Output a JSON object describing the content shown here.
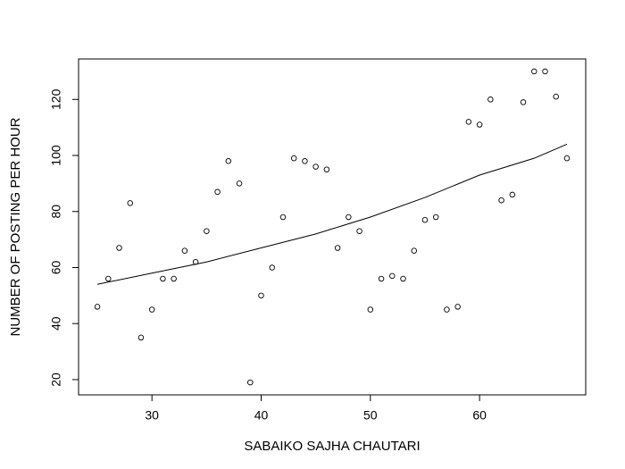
{
  "chart_data": {
    "type": "scatter",
    "xlabel": "SABAIKO SAJHA CHAUTARI",
    "ylabel": "NUMBER OF POSTING PER HOUR",
    "x": [
      25,
      26,
      27,
      28,
      29,
      30,
      31,
      32,
      33,
      34,
      35,
      36,
      37,
      38,
      39,
      40,
      41,
      42,
      43,
      44,
      45,
      46,
      47,
      48,
      49,
      50,
      51,
      52,
      53,
      54,
      55,
      56,
      57,
      58,
      59,
      60,
      61,
      62,
      63,
      64,
      65,
      66,
      67,
      68
    ],
    "values": [
      46,
      56,
      67,
      83,
      35,
      45,
      56,
      56,
      66,
      62,
      73,
      87,
      98,
      90,
      19,
      50,
      60,
      78,
      99,
      98,
      96,
      95,
      67,
      78,
      73,
      45,
      56,
      57,
      56,
      66,
      77,
      78,
      45,
      46,
      112,
      111,
      120,
      84,
      86,
      119,
      130,
      130,
      121,
      99
    ],
    "trend": {
      "x": [
        25,
        30,
        35,
        40,
        45,
        50,
        55,
        60,
        65,
        68
      ],
      "values": [
        54,
        58,
        62,
        67,
        72,
        78,
        85,
        93,
        99,
        104
      ]
    },
    "xlim": [
      23.28,
      69.72
    ],
    "ylim": [
      14.56,
      134.44
    ],
    "xticks": [
      30,
      40,
      50,
      60
    ],
    "yticks": [
      20,
      40,
      60,
      80,
      100,
      120
    ]
  }
}
